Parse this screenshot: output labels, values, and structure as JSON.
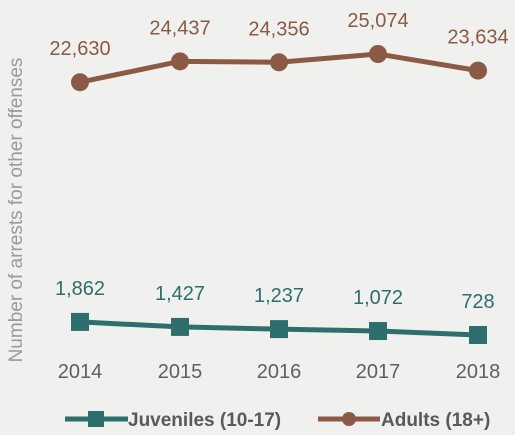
{
  "chart_data": {
    "type": "line",
    "title": "",
    "ylabel": "Number of arrests for other offenses",
    "xlabel": "",
    "categories": [
      "2014",
      "2015",
      "2016",
      "2017",
      "2018"
    ],
    "series": [
      {
        "name": "Juveniles (10-17)",
        "values": [
          1862,
          1427,
          1237,
          1072,
          728
        ],
        "labels": [
          "1,862",
          "1,427",
          "1,237",
          "1,072",
          "728"
        ],
        "color": "#2e6e6c",
        "marker": "square"
      },
      {
        "name": "Adults (18+)",
        "values": [
          22630,
          24437,
          24356,
          25074,
          23634
        ],
        "labels": [
          "22,630",
          "24,437",
          "24,356",
          "25,074",
          "23,634"
        ],
        "color": "#8a5a44",
        "marker": "circle"
      }
    ],
    "ylim": [
      0,
      27000
    ],
    "grid": false,
    "axis_color": "#7f7f7f",
    "label_color": "#9a9a9a",
    "legend_position": "bottom"
  }
}
